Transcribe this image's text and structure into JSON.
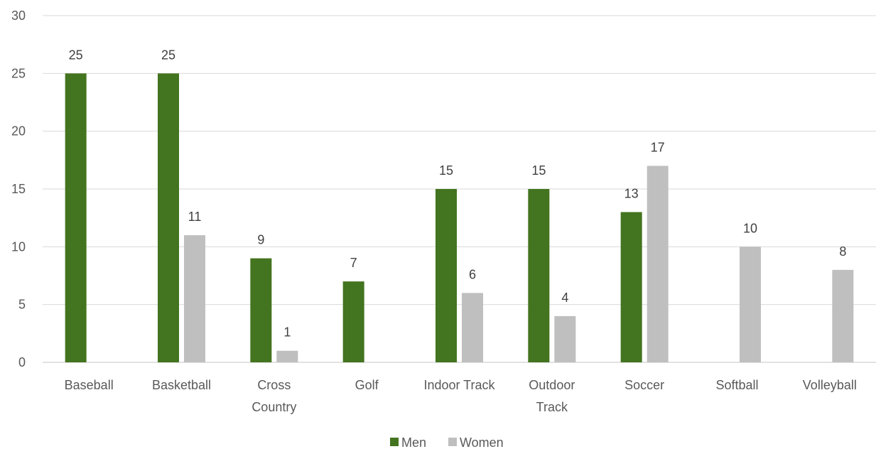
{
  "chart_data": {
    "type": "bar",
    "title": "",
    "xlabel": "",
    "ylabel": "",
    "categories": [
      [
        "Baseball"
      ],
      [
        "Basketball"
      ],
      [
        "Cross",
        "Country"
      ],
      [
        "Golf"
      ],
      [
        "Indoor Track"
      ],
      [
        "Outdoor",
        "Track"
      ],
      [
        "Soccer"
      ],
      [
        "Softball"
      ],
      [
        "Volleyball"
      ]
    ],
    "series": [
      {
        "name": "Men",
        "color": "#43741f",
        "values": [
          25,
          25,
          9,
          7,
          15,
          15,
          13,
          null,
          null
        ]
      },
      {
        "name": "Women",
        "color": "#bfbfbf",
        "values": [
          null,
          11,
          1,
          null,
          6,
          4,
          17,
          10,
          8
        ]
      }
    ],
    "ylim": [
      0,
      30
    ],
    "yticks": [
      0,
      5,
      10,
      15,
      20,
      25,
      30
    ],
    "grid": true,
    "legend_position": "bottom",
    "data_labels": true
  }
}
